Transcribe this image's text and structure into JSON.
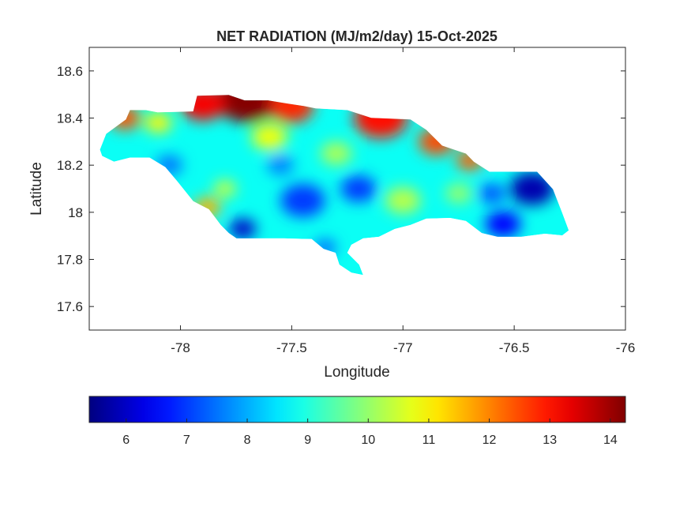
{
  "chart_data": {
    "type": "heatmap",
    "title": "NET RADIATION (MJ/m2/day) 15-Oct-2025",
    "xlabel": "Longitude",
    "ylabel": "Latitude",
    "xlim": [
      -78.41,
      -76
    ],
    "ylim": [
      17.5,
      18.7
    ],
    "xticks": [
      -78,
      -77.5,
      -77,
      -76.5,
      -76
    ],
    "xtick_labels": [
      "-78",
      "-77.5",
      "-77",
      "-76.5",
      "-76"
    ],
    "yticks": [
      17.6,
      17.8,
      18,
      18.2,
      18.4,
      18.6
    ],
    "ytick_labels": [
      "17.6",
      "17.8",
      "18",
      "18.2",
      "18.4",
      "18.6"
    ],
    "grid": false,
    "colormap": "jet",
    "clim": [
      5.39,
      14.25
    ],
    "colorbar": {
      "location": "south",
      "ticks": [
        6,
        7,
        8,
        9,
        10,
        11,
        12,
        13,
        14
      ],
      "tick_labels": [
        "6",
        "7",
        "8",
        "9",
        "10",
        "11",
        "12",
        "13",
        "14"
      ]
    },
    "base_value": 8.8,
    "outline": [
      [
        -78.362,
        18.266
      ],
      [
        -78.334,
        18.333
      ],
      [
        -78.245,
        18.394
      ],
      [
        -78.227,
        18.434
      ],
      [
        -78.156,
        18.434
      ],
      [
        -78.103,
        18.424
      ],
      [
        -77.943,
        18.428
      ],
      [
        -77.925,
        18.495
      ],
      [
        -77.783,
        18.498
      ],
      [
        -77.712,
        18.475
      ],
      [
        -77.606,
        18.475
      ],
      [
        -77.517,
        18.461
      ],
      [
        -77.446,
        18.451
      ],
      [
        -77.392,
        18.441
      ],
      [
        -77.25,
        18.434
      ],
      [
        -77.143,
        18.401
      ],
      [
        -76.966,
        18.394
      ],
      [
        -76.895,
        18.35
      ],
      [
        -76.824,
        18.283
      ],
      [
        -76.717,
        18.249
      ],
      [
        -76.682,
        18.215
      ],
      [
        -76.611,
        18.172
      ],
      [
        -76.397,
        18.172
      ],
      [
        -76.326,
        18.098
      ],
      [
        -76.284,
        17.997
      ],
      [
        -76.255,
        17.923
      ],
      [
        -76.284,
        17.902
      ],
      [
        -76.362,
        17.909
      ],
      [
        -76.468,
        17.896
      ],
      [
        -76.575,
        17.896
      ],
      [
        -76.646,
        17.912
      ],
      [
        -76.717,
        17.963
      ],
      [
        -76.788,
        17.976
      ],
      [
        -76.895,
        17.973
      ],
      [
        -76.966,
        17.946
      ],
      [
        -77.037,
        17.929
      ],
      [
        -77.108,
        17.896
      ],
      [
        -77.179,
        17.889
      ],
      [
        -77.232,
        17.862
      ],
      [
        -77.25,
        17.828
      ],
      [
        -77.197,
        17.778
      ],
      [
        -77.179,
        17.734
      ],
      [
        -77.232,
        17.744
      ],
      [
        -77.286,
        17.778
      ],
      [
        -77.303,
        17.828
      ],
      [
        -77.357,
        17.845
      ],
      [
        -77.41,
        17.886
      ],
      [
        -77.534,
        17.889
      ],
      [
        -77.677,
        17.889
      ],
      [
        -77.748,
        17.889
      ],
      [
        -77.783,
        17.912
      ],
      [
        -77.819,
        17.946
      ],
      [
        -77.872,
        18.013
      ],
      [
        -77.943,
        18.047
      ],
      [
        -78.014,
        18.131
      ],
      [
        -78.068,
        18.192
      ],
      [
        -78.139,
        18.232
      ],
      [
        -78.227,
        18.232
      ],
      [
        -78.299,
        18.215
      ],
      [
        -78.352,
        18.239
      ]
    ],
    "field": [
      {
        "lon": -77.7,
        "lat": 18.48,
        "value": 14.2,
        "r": 0.14
      },
      {
        "lon": -77.9,
        "lat": 18.46,
        "value": 13.2,
        "r": 0.1
      },
      {
        "lon": -77.5,
        "lat": 18.45,
        "value": 12.8,
        "r": 0.1
      },
      {
        "lon": -77.1,
        "lat": 18.4,
        "value": 13.0,
        "r": 0.12
      },
      {
        "lon": -76.85,
        "lat": 18.3,
        "value": 12.5,
        "r": 0.08
      },
      {
        "lon": -76.7,
        "lat": 18.22,
        "value": 12.3,
        "r": 0.06
      },
      {
        "lon": -78.25,
        "lat": 18.4,
        "value": 12.4,
        "r": 0.07
      },
      {
        "lon": -78.1,
        "lat": 18.38,
        "value": 11.0,
        "r": 0.06
      },
      {
        "lon": -77.88,
        "lat": 18.02,
        "value": 11.6,
        "r": 0.06
      },
      {
        "lon": -77.8,
        "lat": 18.1,
        "value": 10.5,
        "r": 0.05
      },
      {
        "lon": -77.6,
        "lat": 18.32,
        "value": 10.8,
        "r": 0.08
      },
      {
        "lon": -77.3,
        "lat": 18.25,
        "value": 10.2,
        "r": 0.07
      },
      {
        "lon": -77.0,
        "lat": 18.05,
        "value": 10.3,
        "r": 0.08
      },
      {
        "lon": -76.75,
        "lat": 18.08,
        "value": 10.0,
        "r": 0.06
      },
      {
        "lon": -76.42,
        "lat": 18.1,
        "value": 5.8,
        "r": 0.1
      },
      {
        "lon": -76.55,
        "lat": 17.95,
        "value": 6.5,
        "r": 0.08
      },
      {
        "lon": -76.6,
        "lat": 18.08,
        "value": 7.2,
        "r": 0.06
      },
      {
        "lon": -77.72,
        "lat": 17.93,
        "value": 6.0,
        "r": 0.06
      },
      {
        "lon": -77.45,
        "lat": 18.05,
        "value": 7.0,
        "r": 0.1
      },
      {
        "lon": -77.2,
        "lat": 18.1,
        "value": 7.0,
        "r": 0.08
      },
      {
        "lon": -78.05,
        "lat": 18.2,
        "value": 7.5,
        "r": 0.06
      },
      {
        "lon": -77.35,
        "lat": 17.85,
        "value": 7.4,
        "r": 0.05
      },
      {
        "lon": -77.55,
        "lat": 18.2,
        "value": 7.6,
        "r": 0.06
      }
    ]
  }
}
